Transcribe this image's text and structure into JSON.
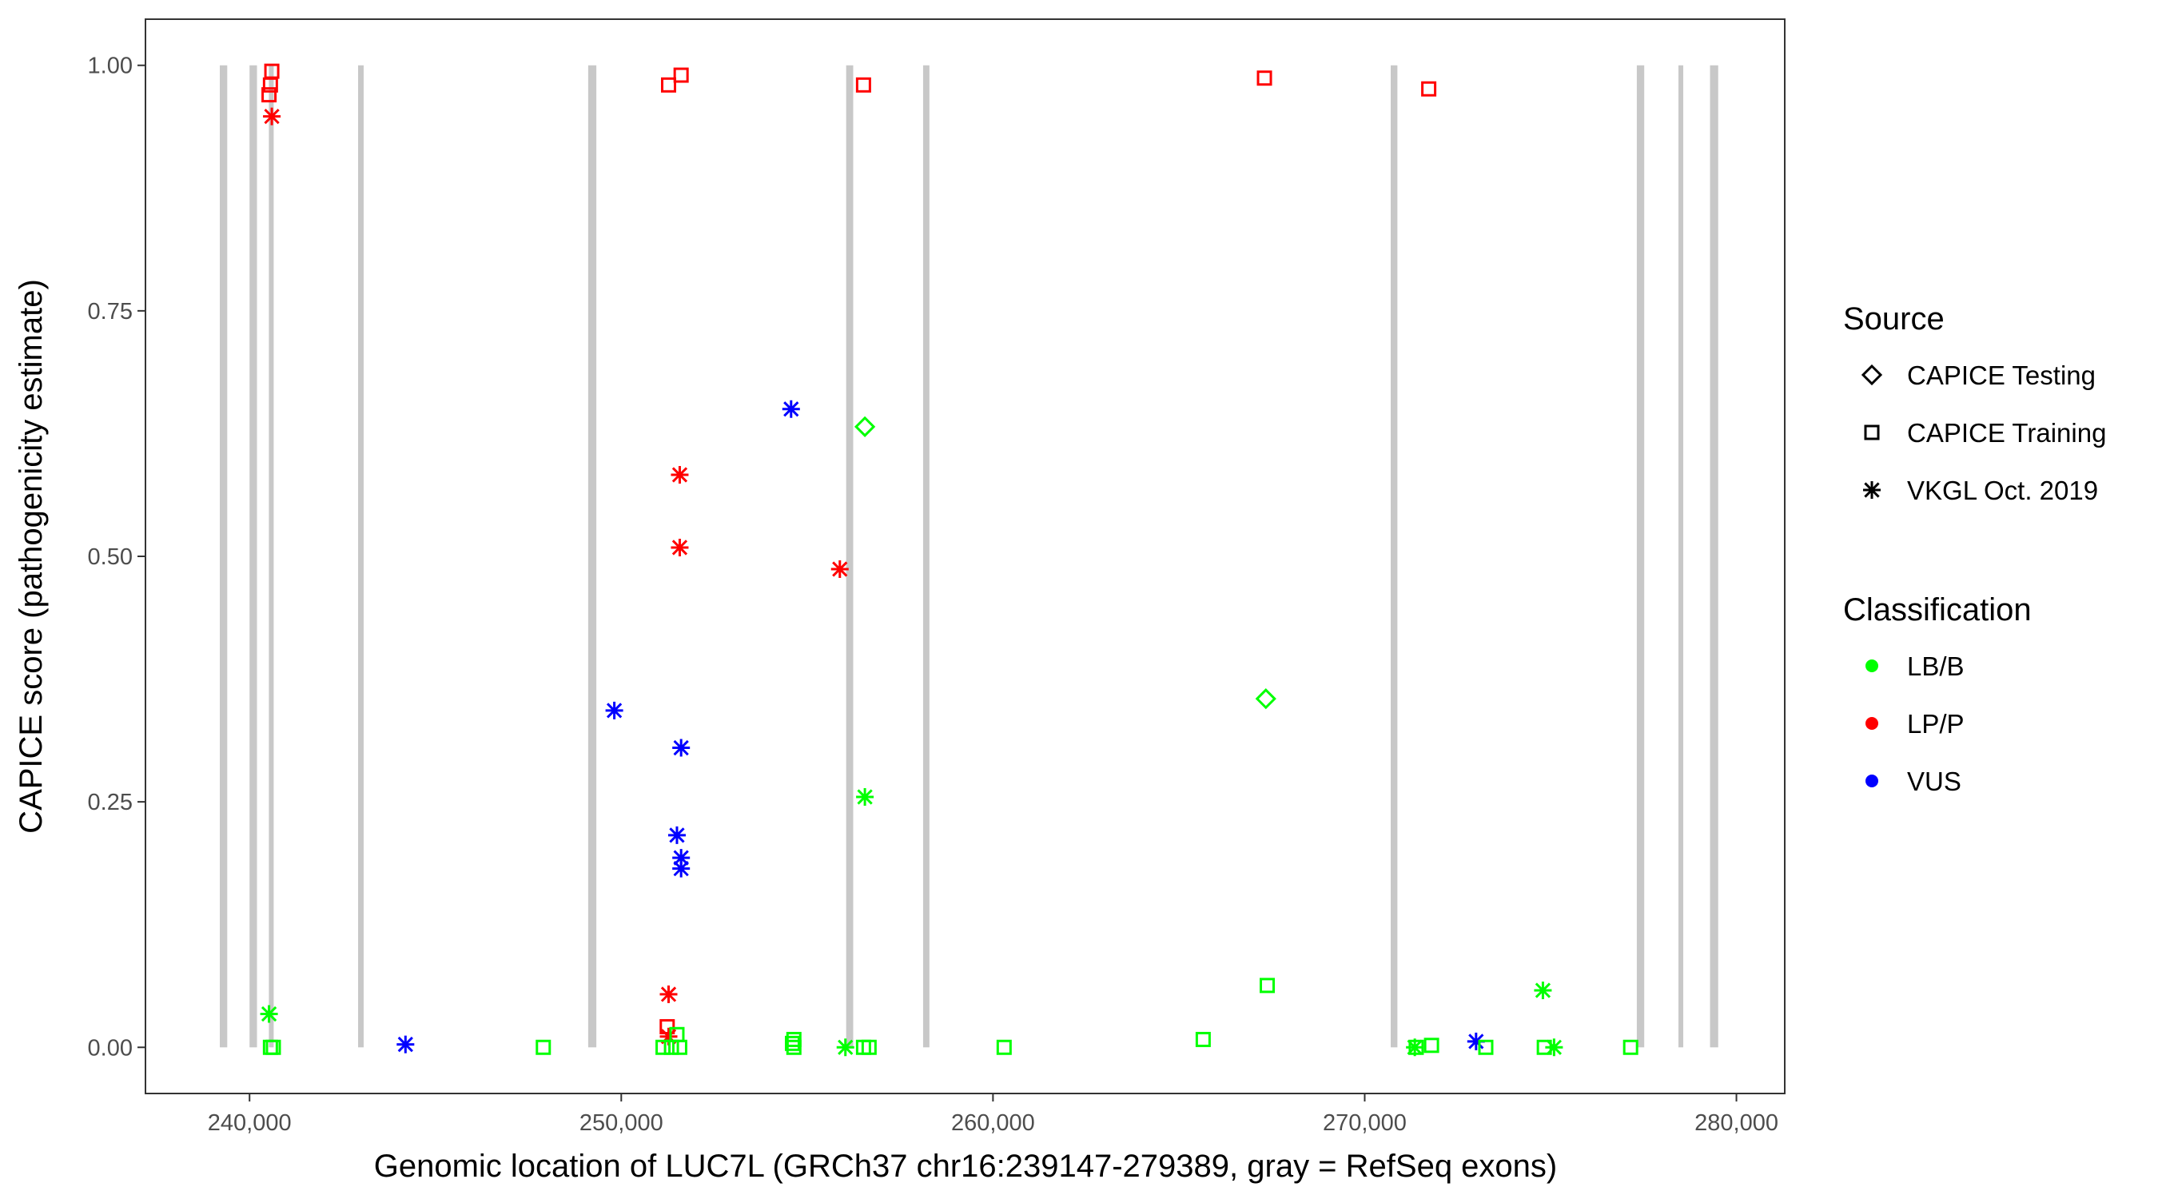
{
  "chart_data": {
    "type": "scatter",
    "xlabel": "Genomic location of LUC7L (GRCh37 chr16:239147-279389, gray = RefSeq exons)",
    "ylabel": "CAPICE score (pathogenicity estimate)",
    "xlim": [
      237200,
      281300
    ],
    "ylim": [
      -0.047,
      1.047
    ],
    "x_ticks": [
      240000,
      250000,
      260000,
      270000,
      280000
    ],
    "x_tick_labels": [
      "240,000",
      "250,000",
      "260,000",
      "270,000",
      "280,000"
    ],
    "y_ticks": [
      0,
      0.25,
      0.5,
      0.75,
      1.0
    ],
    "y_tick_labels": [
      "0.00",
      "0.25",
      "0.50",
      "0.75",
      "1.00"
    ],
    "grid": false,
    "exon_color": "#c8c8c8",
    "exons": [
      [
        239200,
        239400
      ],
      [
        240000,
        240200
      ],
      [
        240520,
        240610
      ],
      [
        242920,
        243070
      ],
      [
        249110,
        249330
      ],
      [
        256050,
        256240
      ],
      [
        258120,
        258290
      ],
      [
        270700,
        270880
      ],
      [
        277320,
        277520
      ],
      [
        278440,
        278570
      ],
      [
        279290,
        279510
      ]
    ],
    "legend": {
      "placement": "right",
      "source_title": "Source",
      "source_items": [
        {
          "label": "CAPICE Testing",
          "shape": "diamond"
        },
        {
          "label": "CAPICE Training",
          "shape": "square"
        },
        {
          "label": "VKGL Oct. 2019",
          "shape": "asterisk"
        }
      ],
      "class_title": "Classification",
      "class_items": [
        {
          "label": "LB/B",
          "color": "#00ff00"
        },
        {
          "label": "LP/P",
          "color": "#ff0000"
        },
        {
          "label": "VUS",
          "color": "#0000ff"
        }
      ]
    },
    "points": [
      {
        "x": 240599,
        "y": 0.994,
        "source": "CAPICE Training",
        "class": "LP/P"
      },
      {
        "x": 240562,
        "y": 0.98,
        "source": "CAPICE Training",
        "class": "LP/P"
      },
      {
        "x": 240524,
        "y": 0.97,
        "source": "CAPICE Training",
        "class": "LP/P"
      },
      {
        "x": 251610,
        "y": 0.99,
        "source": "CAPICE Training",
        "class": "LP/P"
      },
      {
        "x": 251273,
        "y": 0.98,
        "source": "CAPICE Training",
        "class": "LP/P"
      },
      {
        "x": 256517,
        "y": 0.98,
        "source": "CAPICE Training",
        "class": "LP/P"
      },
      {
        "x": 267303,
        "y": 0.987,
        "source": "CAPICE Training",
        "class": "LP/P"
      },
      {
        "x": 271723,
        "y": 0.976,
        "source": "CAPICE Training",
        "class": "LP/P"
      },
      {
        "x": 251236,
        "y": 0.021,
        "source": "CAPICE Training",
        "class": "LP/P"
      },
      {
        "x": 240599,
        "y": 0.948,
        "source": "VKGL Oct. 2019",
        "class": "LP/P"
      },
      {
        "x": 251573,
        "y": 0.583,
        "source": "VKGL Oct. 2019",
        "class": "LP/P"
      },
      {
        "x": 251573,
        "y": 0.509,
        "source": "VKGL Oct. 2019",
        "class": "LP/P"
      },
      {
        "x": 255880,
        "y": 0.487,
        "source": "VKGL Oct. 2019",
        "class": "LP/P"
      },
      {
        "x": 251273,
        "y": 0.054,
        "source": "VKGL Oct. 2019",
        "class": "LP/P"
      },
      {
        "x": 251273,
        "y": 0.011,
        "source": "VKGL Oct. 2019",
        "class": "LP/P"
      },
      {
        "x": 254569,
        "y": 0.65,
        "source": "VKGL Oct. 2019",
        "class": "VUS"
      },
      {
        "x": 249813,
        "y": 0.343,
        "source": "VKGL Oct. 2019",
        "class": "VUS"
      },
      {
        "x": 251610,
        "y": 0.305,
        "source": "VKGL Oct. 2019",
        "class": "VUS"
      },
      {
        "x": 251498,
        "y": 0.216,
        "source": "VKGL Oct. 2019",
        "class": "VUS"
      },
      {
        "x": 251610,
        "y": 0.193,
        "source": "VKGL Oct. 2019",
        "class": "VUS"
      },
      {
        "x": 251610,
        "y": 0.182,
        "source": "VKGL Oct. 2019",
        "class": "VUS"
      },
      {
        "x": 244195,
        "y": 0.003,
        "source": "VKGL Oct. 2019",
        "class": "VUS"
      },
      {
        "x": 272996,
        "y": 0.006,
        "source": "VKGL Oct. 2019",
        "class": "VUS"
      },
      {
        "x": 256554,
        "y": 0.632,
        "source": "CAPICE Testing",
        "class": "LB/B"
      },
      {
        "x": 267341,
        "y": 0.355,
        "source": "CAPICE Testing",
        "class": "LB/B"
      },
      {
        "x": 240524,
        "y": 0.034,
        "source": "VKGL Oct. 2019",
        "class": "LB/B"
      },
      {
        "x": 256554,
        "y": 0.255,
        "source": "VKGL Oct. 2019",
        "class": "LB/B"
      },
      {
        "x": 274794,
        "y": 0.058,
        "source": "VKGL Oct. 2019",
        "class": "LB/B"
      },
      {
        "x": 256030,
        "y": 0.0,
        "source": "VKGL Oct. 2019",
        "class": "LB/B"
      },
      {
        "x": 271348,
        "y": 0.0,
        "source": "VKGL Oct. 2019",
        "class": "LB/B"
      },
      {
        "x": 275094,
        "y": 0.0,
        "source": "VKGL Oct. 2019",
        "class": "LB/B"
      },
      {
        "x": 240562,
        "y": 0.0,
        "source": "CAPICE Training",
        "class": "LB/B"
      },
      {
        "x": 240640,
        "y": 0.0,
        "source": "CAPICE Training",
        "class": "LB/B"
      },
      {
        "x": 247903,
        "y": 0.0,
        "source": "CAPICE Training",
        "class": "LB/B"
      },
      {
        "x": 251124,
        "y": 0.0,
        "source": "CAPICE Training",
        "class": "LB/B"
      },
      {
        "x": 251350,
        "y": 0.0,
        "source": "CAPICE Training",
        "class": "LB/B"
      },
      {
        "x": 251573,
        "y": 0.0,
        "source": "CAPICE Training",
        "class": "LB/B"
      },
      {
        "x": 251498,
        "y": 0.013,
        "source": "CAPICE Training",
        "class": "LB/B"
      },
      {
        "x": 254644,
        "y": 0.008,
        "source": "CAPICE Training",
        "class": "LB/B"
      },
      {
        "x": 254606,
        "y": 0.004,
        "source": "CAPICE Training",
        "class": "LB/B"
      },
      {
        "x": 254644,
        "y": 0.0,
        "source": "CAPICE Training",
        "class": "LB/B"
      },
      {
        "x": 256517,
        "y": 0.0,
        "source": "CAPICE Training",
        "class": "LB/B"
      },
      {
        "x": 256667,
        "y": 0.0,
        "source": "CAPICE Training",
        "class": "LB/B"
      },
      {
        "x": 260300,
        "y": 0.0,
        "source": "CAPICE Training",
        "class": "LB/B"
      },
      {
        "x": 265655,
        "y": 0.008,
        "source": "CAPICE Training",
        "class": "LB/B"
      },
      {
        "x": 267378,
        "y": 0.063,
        "source": "CAPICE Training",
        "class": "LB/B"
      },
      {
        "x": 271386,
        "y": 0.0,
        "source": "CAPICE Training",
        "class": "LB/B"
      },
      {
        "x": 271798,
        "y": 0.002,
        "source": "CAPICE Training",
        "class": "LB/B"
      },
      {
        "x": 273258,
        "y": 0.0,
        "source": "CAPICE Training",
        "class": "LB/B"
      },
      {
        "x": 274831,
        "y": 0.0,
        "source": "CAPICE Training",
        "class": "LB/B"
      },
      {
        "x": 277154,
        "y": 0.0,
        "source": "CAPICE Training",
        "class": "LB/B"
      }
    ]
  }
}
